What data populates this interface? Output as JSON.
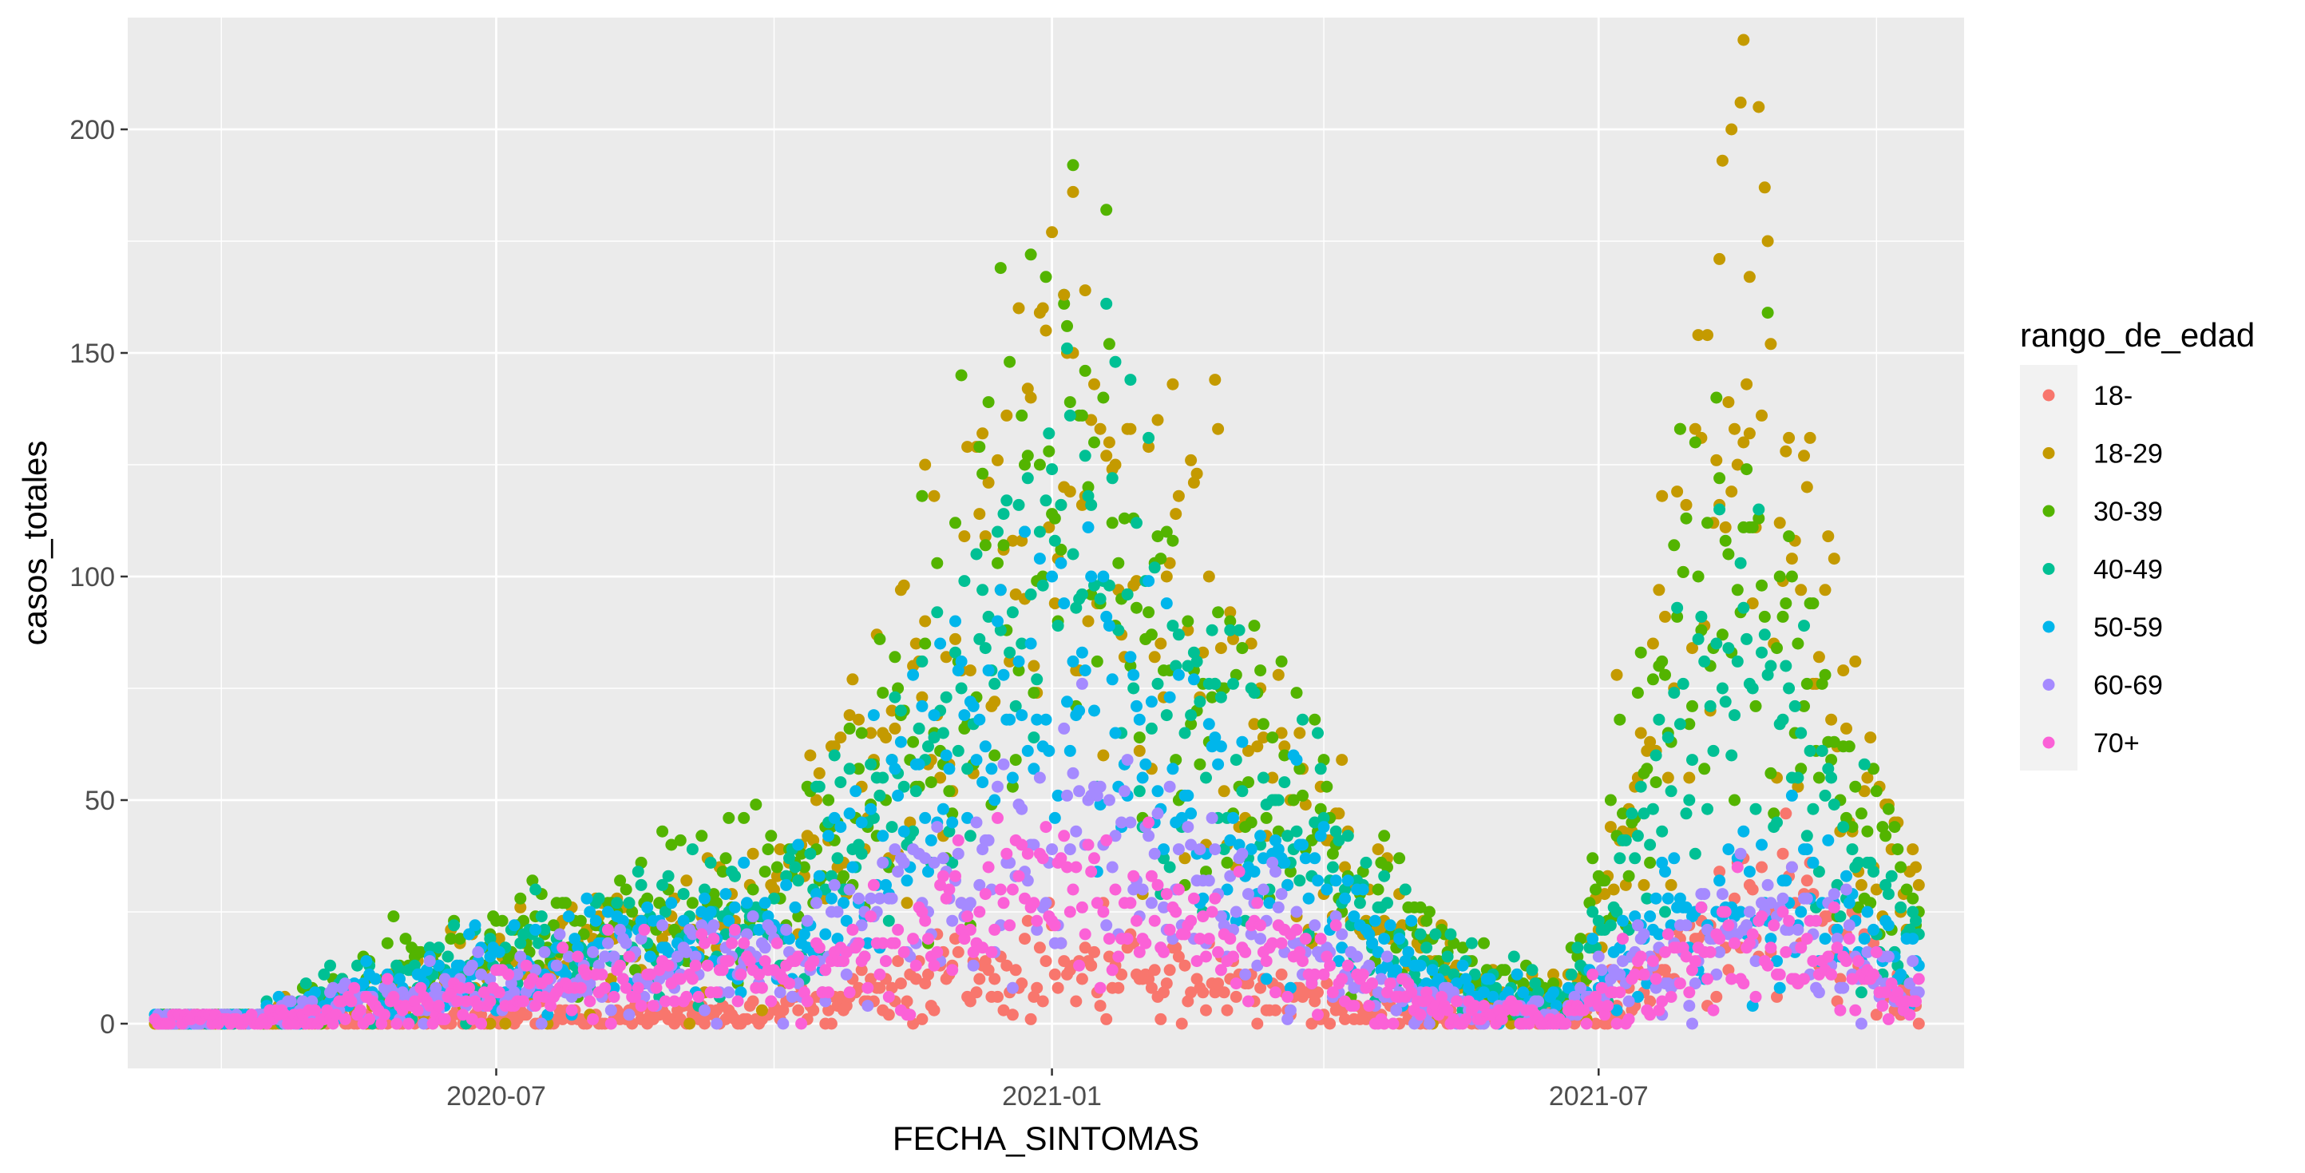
{
  "chart_data": {
    "type": "scatter",
    "xlabel": "FECHA_SINTOMAS",
    "ylabel": "casos_totales",
    "x_range": [
      "2020-03-01",
      "2021-10-30"
    ],
    "x_ticks": [
      {
        "date": "2020-07-01",
        "label": "2020-07"
      },
      {
        "date": "2021-01-01",
        "label": "2021-01"
      },
      {
        "date": "2021-07-01",
        "label": "2021-07"
      }
    ],
    "x_minor_ticks": [
      "2020-04-01",
      "2020-10-01",
      "2021-04-01",
      "2021-10-01"
    ],
    "ylim": [
      -10,
      225
    ],
    "y_ticks": [
      0,
      50,
      100,
      150,
      200
    ],
    "y_minor_ticks": [
      25,
      75,
      125,
      175
    ],
    "grid": true,
    "legend": {
      "title": "rango_de_edad",
      "position": "right"
    },
    "date_range": [
      "2020-03-10",
      "2021-10-15"
    ],
    "series": [
      {
        "name": "18-",
        "color": "#F8766D",
        "profile": [
          [
            "2020-03-10",
            0.3
          ],
          [
            "2020-05-01",
            0.8
          ],
          [
            "2020-07-01",
            1.5
          ],
          [
            "2020-09-15",
            2
          ],
          [
            "2020-10-20",
            5
          ],
          [
            "2020-12-01",
            12
          ],
          [
            "2021-01-01",
            15
          ],
          [
            "2021-01-10",
            14
          ],
          [
            "2021-02-15",
            10
          ],
          [
            "2021-03-15",
            7
          ],
          [
            "2021-04-15",
            3
          ],
          [
            "2021-05-20",
            1
          ],
          [
            "2021-06-25",
            1
          ],
          [
            "2021-07-20",
            10
          ],
          [
            "2021-08-15",
            25
          ],
          [
            "2021-09-01",
            30
          ],
          [
            "2021-09-15",
            20
          ],
          [
            "2021-10-15",
            5
          ]
        ]
      },
      {
        "name": "18-29",
        "color": "#C49A00",
        "profile": [
          [
            "2020-03-10",
            1
          ],
          [
            "2020-04-20",
            2
          ],
          [
            "2020-05-15",
            6
          ],
          [
            "2020-07-01",
            12
          ],
          [
            "2020-08-15",
            20
          ],
          [
            "2020-09-30",
            25
          ],
          [
            "2020-11-01",
            60
          ],
          [
            "2020-12-01",
            90
          ],
          [
            "2021-01-01",
            135
          ],
          [
            "2021-01-10",
            120
          ],
          [
            "2021-02-01",
            95
          ],
          [
            "2021-03-01",
            75
          ],
          [
            "2021-04-01",
            40
          ],
          [
            "2021-05-01",
            15
          ],
          [
            "2021-06-01",
            5
          ],
          [
            "2021-06-25",
            5
          ],
          [
            "2021-07-20",
            80
          ],
          [
            "2021-08-10",
            135
          ],
          [
            "2021-08-18",
            150
          ],
          [
            "2021-09-01",
            120
          ],
          [
            "2021-09-20",
            60
          ],
          [
            "2021-10-15",
            25
          ]
        ]
      },
      {
        "name": "30-39",
        "color": "#53B400",
        "profile": [
          [
            "2020-03-10",
            1
          ],
          [
            "2020-04-20",
            2
          ],
          [
            "2020-05-15",
            9
          ],
          [
            "2020-07-01",
            16
          ],
          [
            "2020-08-15",
            24
          ],
          [
            "2020-09-30",
            28
          ],
          [
            "2020-11-01",
            55
          ],
          [
            "2020-12-01",
            85
          ],
          [
            "2021-01-01",
            125
          ],
          [
            "2021-01-15",
            125
          ],
          [
            "2021-02-15",
            75
          ],
          [
            "2021-03-15",
            60
          ],
          [
            "2021-04-15",
            28
          ],
          [
            "2021-05-15",
            12
          ],
          [
            "2021-06-20",
            5
          ],
          [
            "2021-07-20",
            70
          ],
          [
            "2021-08-15",
            115
          ],
          [
            "2021-09-01",
            90
          ],
          [
            "2021-09-20",
            50
          ],
          [
            "2021-10-15",
            20
          ]
        ]
      },
      {
        "name": "40-49",
        "color": "#00C094",
        "profile": [
          [
            "2020-03-10",
            1
          ],
          [
            "2020-04-20",
            2
          ],
          [
            "2020-05-15",
            7
          ],
          [
            "2020-07-01",
            14
          ],
          [
            "2020-08-15",
            20
          ],
          [
            "2020-09-30",
            24
          ],
          [
            "2020-11-01",
            45
          ],
          [
            "2020-12-01",
            70
          ],
          [
            "2021-01-01",
            110
          ],
          [
            "2021-01-15",
            110
          ],
          [
            "2021-02-15",
            65
          ],
          [
            "2021-03-15",
            50
          ],
          [
            "2021-04-15",
            25
          ],
          [
            "2021-05-15",
            10
          ],
          [
            "2021-06-20",
            4
          ],
          [
            "2021-07-20",
            50
          ],
          [
            "2021-08-15",
            80
          ],
          [
            "2021-09-01",
            70
          ],
          [
            "2021-09-20",
            35
          ],
          [
            "2021-10-15",
            15
          ]
        ]
      },
      {
        "name": "50-59",
        "color": "#00B6EB",
        "profile": [
          [
            "2020-03-10",
            1
          ],
          [
            "2020-04-20",
            2
          ],
          [
            "2020-05-15",
            5
          ],
          [
            "2020-07-01",
            11
          ],
          [
            "2020-08-15",
            17
          ],
          [
            "2020-09-30",
            20
          ],
          [
            "2020-11-01",
            38
          ],
          [
            "2020-12-01",
            60
          ],
          [
            "2021-01-01",
            82
          ],
          [
            "2021-01-15",
            80
          ],
          [
            "2021-02-15",
            50
          ],
          [
            "2021-03-15",
            38
          ],
          [
            "2021-04-15",
            20
          ],
          [
            "2021-05-15",
            8
          ],
          [
            "2021-06-20",
            3
          ],
          [
            "2021-07-20",
            22
          ],
          [
            "2021-08-15",
            30
          ],
          [
            "2021-09-01",
            28
          ],
          [
            "2021-09-20",
            22
          ],
          [
            "2021-10-15",
            10
          ]
        ]
      },
      {
        "name": "60-69",
        "color": "#A58AFF",
        "profile": [
          [
            "2020-03-10",
            0.5
          ],
          [
            "2020-04-20",
            1.5
          ],
          [
            "2020-05-15",
            4
          ],
          [
            "2020-07-01",
            8
          ],
          [
            "2020-08-15",
            12
          ],
          [
            "2020-09-30",
            15
          ],
          [
            "2020-11-01",
            25
          ],
          [
            "2020-12-01",
            32
          ],
          [
            "2021-01-01",
            45
          ],
          [
            "2021-01-15",
            42
          ],
          [
            "2021-02-15",
            30
          ],
          [
            "2021-03-15",
            22
          ],
          [
            "2021-04-15",
            10
          ],
          [
            "2021-05-15",
            4
          ],
          [
            "2021-06-20",
            2
          ],
          [
            "2021-07-20",
            15
          ],
          [
            "2021-08-15",
            24
          ],
          [
            "2021-09-01",
            22
          ],
          [
            "2021-09-20",
            16
          ],
          [
            "2021-10-15",
            6
          ]
        ]
      },
      {
        "name": "70+",
        "color": "#FB61D7",
        "profile": [
          [
            "2020-03-10",
            0.5
          ],
          [
            "2020-04-20",
            1.5
          ],
          [
            "2020-05-15",
            3
          ],
          [
            "2020-07-01",
            6
          ],
          [
            "2020-08-15",
            10
          ],
          [
            "2020-09-30",
            12
          ],
          [
            "2020-11-01",
            18
          ],
          [
            "2020-12-01",
            25
          ],
          [
            "2021-01-01",
            32
          ],
          [
            "2021-01-15",
            30
          ],
          [
            "2021-02-15",
            22
          ],
          [
            "2021-03-15",
            16
          ],
          [
            "2021-04-15",
            7
          ],
          [
            "2021-05-15",
            3
          ],
          [
            "2021-06-20",
            1.5
          ],
          [
            "2021-07-20",
            10
          ],
          [
            "2021-08-15",
            18
          ],
          [
            "2021-09-01",
            17
          ],
          [
            "2021-09-20",
            12
          ],
          [
            "2021-10-15",
            4
          ]
        ]
      }
    ],
    "notable_points": [
      {
        "date": "2021-08-18",
        "value": 220
      },
      {
        "date": "2021-08-14",
        "value": 200
      },
      {
        "date": "2021-01-08",
        "value": 186
      },
      {
        "date": "2021-08-20",
        "value": 167
      },
      {
        "date": "2021-08-10",
        "value": 171
      },
      {
        "date": "2020-11-20",
        "value": 125
      },
      {
        "date": "2021-01-05",
        "value": 163
      },
      {
        "date": "2021-01-12",
        "value": 164
      }
    ]
  }
}
